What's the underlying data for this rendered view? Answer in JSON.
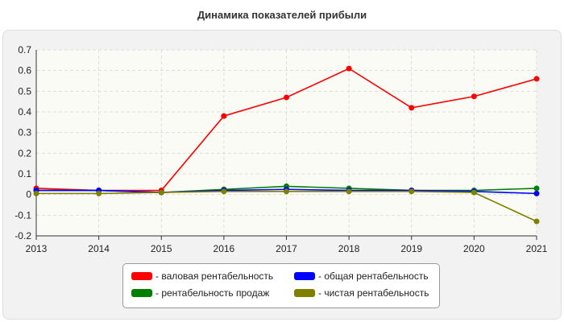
{
  "chart_data": {
    "type": "line",
    "title": "Динамика показателей прибыли",
    "x": [
      2013,
      2014,
      2015,
      2016,
      2017,
      2018,
      2019,
      2020,
      2021
    ],
    "ylim": [
      -0.2,
      0.7
    ],
    "yticks": [
      -0.2,
      -0.1,
      0,
      0.1,
      0.2,
      0.3,
      0.4,
      0.5,
      0.6,
      0.7
    ],
    "grid": true,
    "legend_position": "bottom",
    "series": [
      {
        "name": "- валовая рентабельность",
        "color": "#ff0000",
        "values": [
          0.03,
          0.02,
          0.02,
          0.38,
          0.47,
          0.61,
          0.42,
          0.475,
          0.56
        ]
      },
      {
        "name": "- общая рентабельность",
        "color": "#0000ff",
        "values": [
          0.02,
          0.02,
          0.01,
          0.02,
          0.025,
          0.02,
          0.02,
          0.015,
          0.005
        ]
      },
      {
        "name": "- рентабельность продаж",
        "color": "#008000",
        "values": [
          0.02,
          0.02,
          0.01,
          0.025,
          0.04,
          0.03,
          0.02,
          0.02,
          0.03
        ]
      },
      {
        "name": "- чистая рентабельность",
        "color": "#808000",
        "values": [
          0.005,
          0.005,
          0.01,
          0.015,
          0.015,
          0.015,
          0.015,
          0.01,
          -0.13
        ]
      }
    ]
  }
}
